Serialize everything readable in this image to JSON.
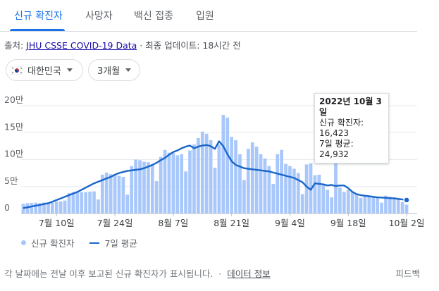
{
  "tabs": [
    "신규 확진자",
    "사망자",
    "백신 접종",
    "입원"
  ],
  "source": {
    "prefix": "출처: ",
    "link": "JHU CSSE COVID-19 Data",
    "suffix": " · 최종 업데이트: 18시간 전"
  },
  "filters": {
    "country": "대한민국",
    "period": "3개월"
  },
  "tooltip": {
    "date": "2022년 10월 3일",
    "cases": "신규 확진자: 16,423",
    "avg": "7일 평균: 24,932"
  },
  "legend": {
    "bars": "신규 확진자",
    "line": "7일 평균"
  },
  "footer": {
    "note": "각 날짜에는 전날 이후 보고된 신규 확진자가 표시됩니다.",
    "dot": "·",
    "link": "데이터 정보",
    "feedback": "피드백"
  },
  "colors": {
    "accent": "#1a73e8",
    "bar": "#a8c7fa",
    "line": "#1a66c9"
  },
  "chart_data": {
    "type": "bar",
    "y_ticks": [
      0,
      50000,
      100000,
      150000,
      200000
    ],
    "y_tick_labels": [
      "0",
      "5만",
      "10만",
      "15만",
      "20만"
    ],
    "ylim": [
      0,
      200000
    ],
    "x_tick_labels": [
      "7월 10일",
      "7월 24일",
      "8월 7일",
      "8월 21일",
      "9월 4일",
      "9월 18일",
      "10월 2일"
    ],
    "x_tick_index": [
      8,
      22,
      36,
      50,
      64,
      78,
      92
    ],
    "series": [
      {
        "name": "신규 확진자",
        "values": [
          18000,
          19000,
          19500,
          20000,
          19000,
          20500,
          21000,
          20000,
          22000,
          22500,
          24000,
          38000,
          40000,
          39000,
          40000,
          39500,
          40500,
          41000,
          26000,
          72000,
          76000,
          73000,
          71000,
          70000,
          68000,
          35000,
          88000,
          100000,
          99000,
          96000,
          95000,
          92000,
          60000,
          105000,
          118000,
          113000,
          112000,
          108000,
          110000,
          78000,
          117000,
          128000,
          140000,
          152000,
          148000,
          136000,
          85000,
          128000,
          183000,
          178000,
          142000,
          136000,
          110000,
          62000,
          120000,
          132000,
          124000,
          110000,
          102000,
          88000,
          55000,
          110000,
          118000,
          92000,
          88000,
          83000,
          75000,
          36000,
          91000,
          93000,
          71000,
          72000,
          55000,
          44000,
          30000,
          158000,
          48000,
          40000,
          44000,
          40000,
          37000,
          29000,
          34000,
          32000,
          30000,
          29000,
          20000,
          33000,
          31000,
          30000,
          28000,
          21000,
          16423
        ]
      },
      {
        "name": "7일 평균",
        "values": [
          10000,
          11500,
          13000,
          14500,
          16000,
          17500,
          19000,
          22000,
          25000,
          28000,
          31000,
          34000,
          37000,
          40000,
          44000,
          48000,
          52000,
          56000,
          59000,
          62000,
          65000,
          68000,
          72000,
          75000,
          77000,
          79000,
          80000,
          81000,
          82000,
          84000,
          87000,
          90000,
          94000,
          99000,
          103000,
          109000,
          114000,
          117000,
          121000,
          124000,
          126000,
          121000,
          124000,
          126000,
          127000,
          125000,
          120000,
          134000,
          125000,
          110000,
          97000,
          90000,
          87000,
          84000,
          83000,
          82000,
          81000,
          80000,
          79000,
          78000,
          76000,
          74000,
          72000,
          70000,
          68000,
          66000,
          62000,
          58000,
          50000,
          44000,
          56000,
          55000,
          54000,
          52000,
          53000,
          51000,
          52000,
          52000,
          47000,
          40000,
          36000,
          34000,
          33000,
          32000,
          31000,
          30000,
          29500,
          29000,
          28500,
          28000,
          27000,
          26000,
          24932
        ]
      }
    ]
  }
}
